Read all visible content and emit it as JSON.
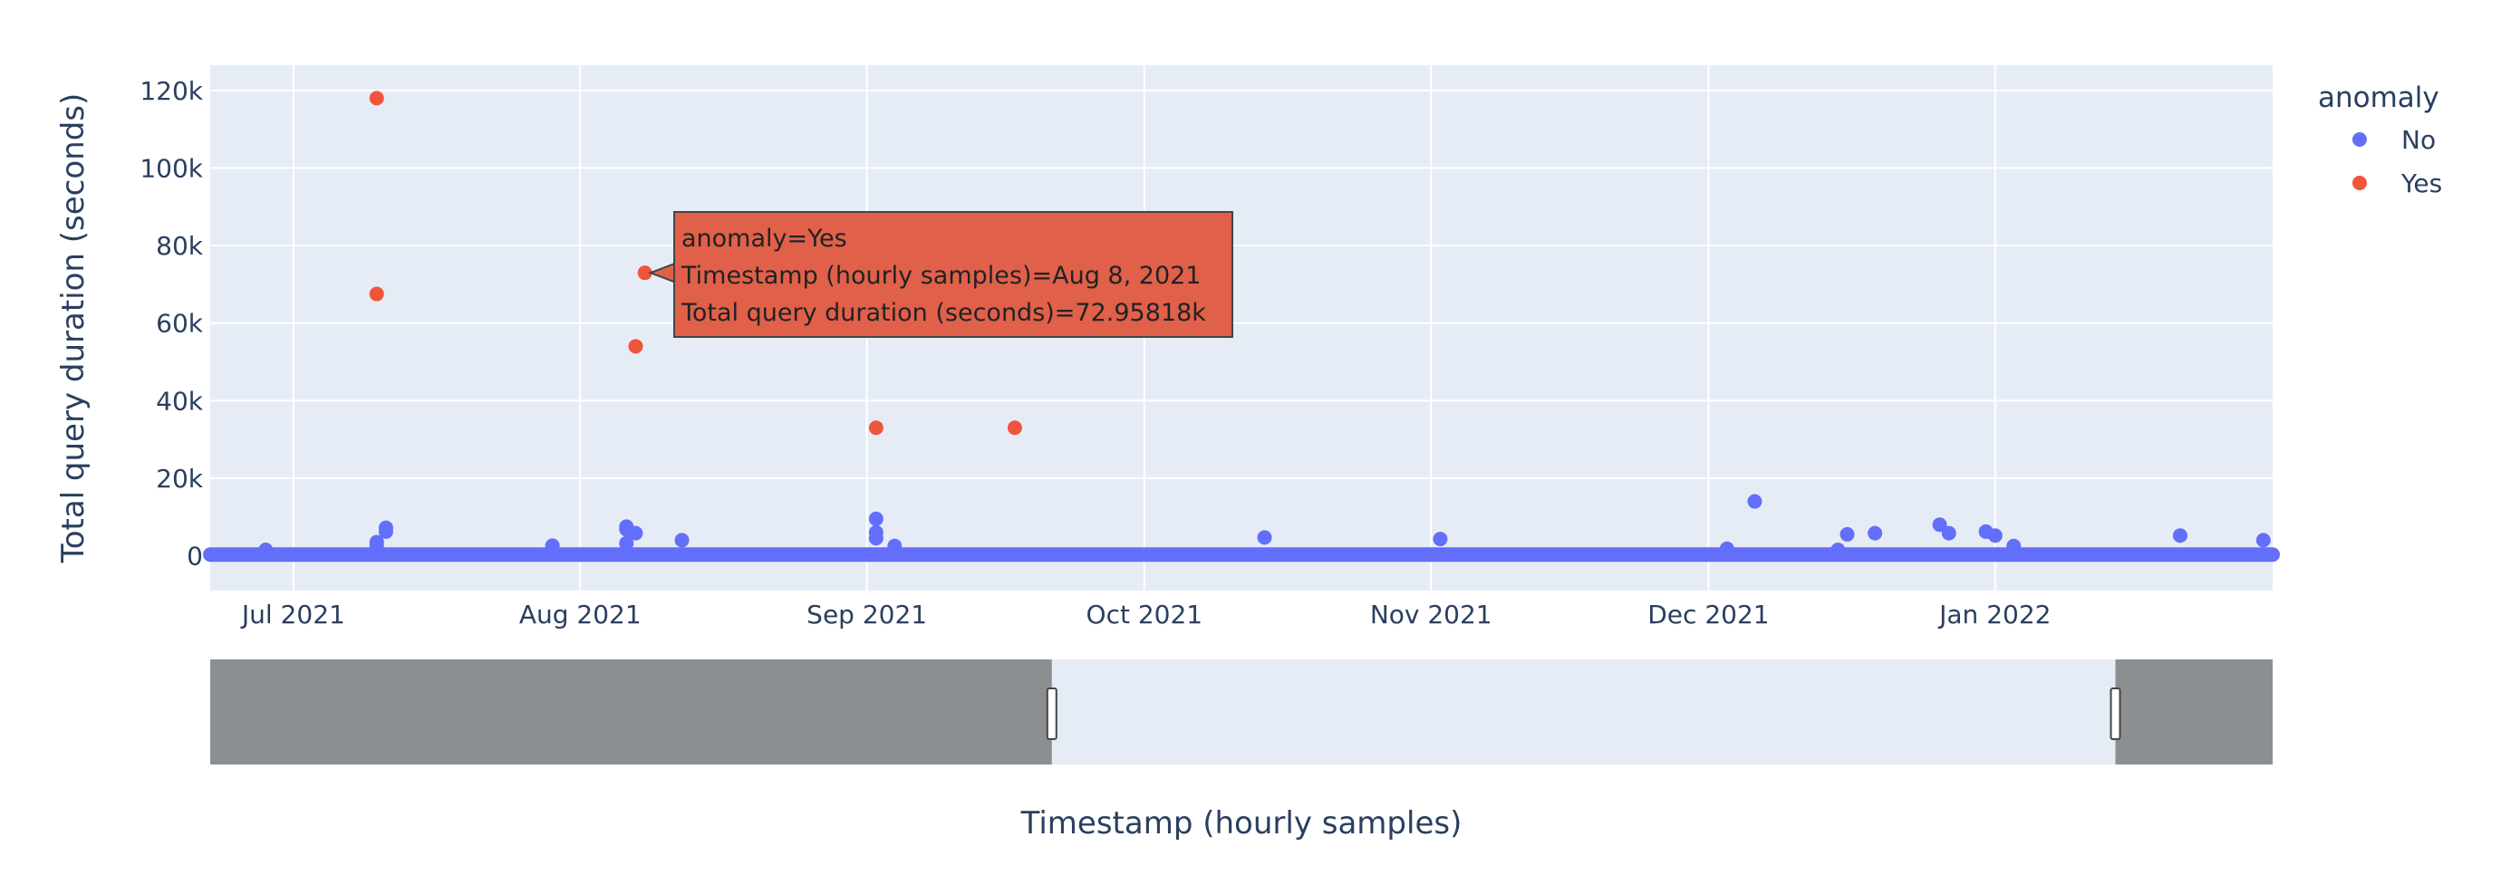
{
  "chart_data": {
    "type": "scatter",
    "xlabel": "Timestamp (hourly samples)",
    "ylabel": "Total query duration (seconds)",
    "xlim": [
      "2021-06-22",
      "2022-01-31"
    ],
    "ylim": [
      -9000,
      126500
    ],
    "x_ticks": [
      {
        "date": "2021-07-01",
        "label": "Jul 2021"
      },
      {
        "date": "2021-08-01",
        "label": "Aug 2021"
      },
      {
        "date": "2021-09-01",
        "label": "Sep 2021"
      },
      {
        "date": "2021-10-01",
        "label": "Oct 2021"
      },
      {
        "date": "2021-11-01",
        "label": "Nov 2021"
      },
      {
        "date": "2021-12-01",
        "label": "Dec 2021"
      },
      {
        "date": "2022-01-01",
        "label": "Jan 2022"
      }
    ],
    "y_ticks": [
      {
        "value": 0,
        "label": "0"
      },
      {
        "value": 20000,
        "label": "20k"
      },
      {
        "value": 40000,
        "label": "40k"
      },
      {
        "value": 60000,
        "label": "60k"
      },
      {
        "value": 80000,
        "label": "80k"
      },
      {
        "value": 100000,
        "label": "100k"
      },
      {
        "value": 120000,
        "label": "120k"
      }
    ],
    "grid": true,
    "legend": {
      "title": "anomaly",
      "position": "right"
    },
    "series": [
      {
        "name": "No",
        "color": "#636efa",
        "baseline": {
          "start": "2021-06-22",
          "end": "2022-01-31",
          "value": 300
        },
        "points": [
          {
            "x": "2021-06-28",
            "y": 1500
          },
          {
            "x": "2021-07-10",
            "y": 2500
          },
          {
            "x": "2021-07-10",
            "y": 3500
          },
          {
            "x": "2021-07-11",
            "y": 6200
          },
          {
            "x": "2021-07-11",
            "y": 7200
          },
          {
            "x": "2021-07-29",
            "y": 2600
          },
          {
            "x": "2021-08-06",
            "y": 7500
          },
          {
            "x": "2021-08-06",
            "y": 6800
          },
          {
            "x": "2021-08-07",
            "y": 5800
          },
          {
            "x": "2021-08-06",
            "y": 3200
          },
          {
            "x": "2021-08-12",
            "y": 4000
          },
          {
            "x": "2021-09-02",
            "y": 9500
          },
          {
            "x": "2021-09-02",
            "y": 6000
          },
          {
            "x": "2021-09-02",
            "y": 4500
          },
          {
            "x": "2021-09-04",
            "y": 2500
          },
          {
            "x": "2021-10-14",
            "y": 4700
          },
          {
            "x": "2021-11-02",
            "y": 4300
          },
          {
            "x": "2021-12-03",
            "y": 1800
          },
          {
            "x": "2021-12-06",
            "y": 14000
          },
          {
            "x": "2021-12-15",
            "y": 1500
          },
          {
            "x": "2021-12-16",
            "y": 5500
          },
          {
            "x": "2021-12-19",
            "y": 5800
          },
          {
            "x": "2021-12-26",
            "y": 8000
          },
          {
            "x": "2021-12-27",
            "y": 5800
          },
          {
            "x": "2021-12-31",
            "y": 6200
          },
          {
            "x": "2022-01-01",
            "y": 5200
          },
          {
            "x": "2022-01-03",
            "y": 2500
          },
          {
            "x": "2022-01-21",
            "y": 5200
          },
          {
            "x": "2022-01-30",
            "y": 4000
          }
        ]
      },
      {
        "name": "Yes",
        "color": "#ef553b",
        "points": [
          {
            "x": "2021-07-10",
            "y": 118000
          },
          {
            "x": "2021-07-10",
            "y": 67500
          },
          {
            "x": "2021-08-07",
            "y": 54000
          },
          {
            "x": "2021-08-08",
            "y": 72958
          },
          {
            "x": "2021-09-02",
            "y": 33000
          },
          {
            "x": "2021-09-17",
            "y": 33000
          }
        ]
      }
    ]
  },
  "tooltip": {
    "line1": "anomaly=Yes",
    "line2": "Timestamp (hourly samples)=Aug 8, 2021",
    "line3": "Total query duration (seconds)=72.95818k",
    "anchor": {
      "x": "2021-08-08",
      "y": 72958
    },
    "color": "#e0604a"
  },
  "rangeslider": {
    "window_start": "2021-09-21",
    "window_end": "2022-01-14"
  }
}
